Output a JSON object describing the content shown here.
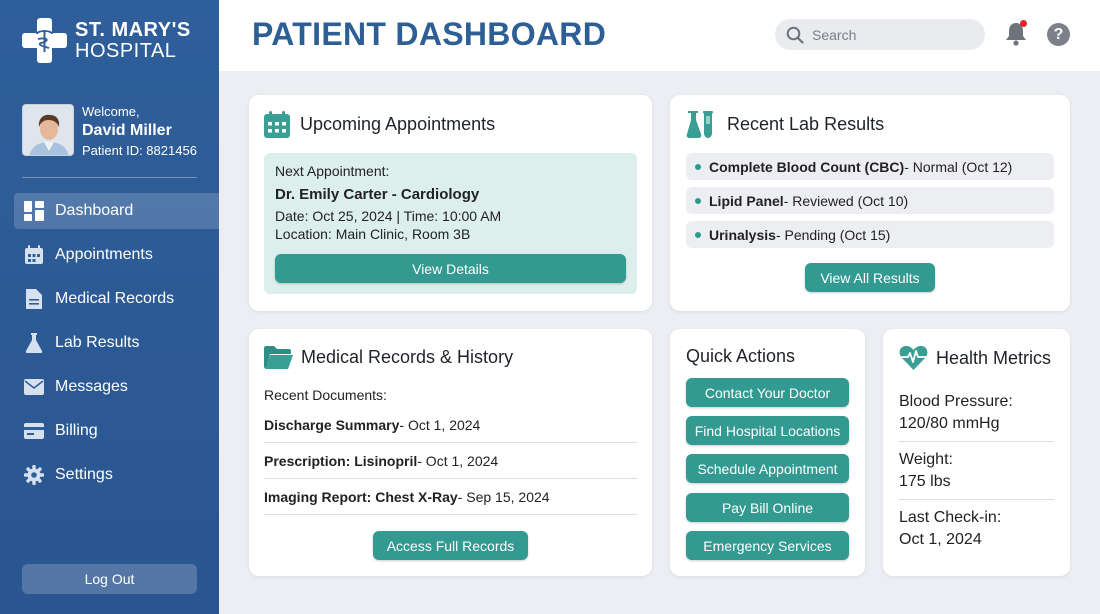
{
  "hospital": {
    "line1": "ST. MARY'S",
    "line2": "HOSPITAL"
  },
  "user": {
    "welcome": "Welcome,",
    "name": "David Miller",
    "patient_id": "Patient ID: 8821456"
  },
  "nav": [
    {
      "label": "Dashboard",
      "icon": "dashboard-icon",
      "active": true
    },
    {
      "label": "Appointments",
      "icon": "calendar-icon"
    },
    {
      "label": "Medical Records",
      "icon": "document-icon"
    },
    {
      "label": "Lab Results",
      "icon": "flask-icon"
    },
    {
      "label": "Messages",
      "icon": "envelope-icon"
    },
    {
      "label": "Billing",
      "icon": "credit-card-icon"
    },
    {
      "label": "Settings",
      "icon": "gear-icon"
    }
  ],
  "logout_label": "Log Out",
  "header": {
    "title": "PATIENT DASHBOARD",
    "search_placeholder": "Search",
    "notification_dot_color": "#e0262b"
  },
  "appointments": {
    "title": "Upcoming Appointments",
    "next_label": "Next Appointment:",
    "doctor": "Dr. Emily Carter - Cardiology",
    "datetime": "Date: Oct 25, 2024 | Time: 10:00 AM",
    "location": "Location: Main Clinic, Room 3B",
    "button": "View Details"
  },
  "lab": {
    "title": "Recent Lab Results",
    "items": [
      {
        "name": "Complete Blood Count (CBC)",
        "status": " - Normal (Oct 12)"
      },
      {
        "name": "Lipid Panel",
        "status": " - Reviewed (Oct 10)"
      },
      {
        "name": "Urinalysis",
        "status": " - Pending (Oct 15)"
      }
    ],
    "button": "View All Results"
  },
  "records": {
    "title": "Medical Records & History",
    "subtitle": "Recent Documents:",
    "items": [
      {
        "name": "Discharge Summary",
        "date": " - Oct 1, 2024"
      },
      {
        "name": "Prescription: Lisinopril",
        "date": " - Oct 1, 2024"
      },
      {
        "name": "Imaging Report: Chest X-Ray",
        "date": " - Sep 15, 2024"
      }
    ],
    "button": "Access Full Records"
  },
  "quick_actions": {
    "title": "Quick Actions",
    "buttons": [
      "Contact Your Doctor",
      "Find Hospital Locations",
      "Schedule Appointment",
      "Pay Bill Online",
      "Emergency Services"
    ]
  },
  "health": {
    "title": "Health Metrics",
    "metrics": [
      {
        "label": "Blood Pressure:",
        "value": "120/80 mmHg"
      },
      {
        "label": "Weight:",
        "value": "175 lbs"
      },
      {
        "label": "Last Check-in:",
        "value": "Oct 1, 2024"
      }
    ]
  },
  "colors": {
    "sidebar": "#2f5f9a",
    "accent": "#329a91",
    "title_blue": "#2d5f95"
  }
}
